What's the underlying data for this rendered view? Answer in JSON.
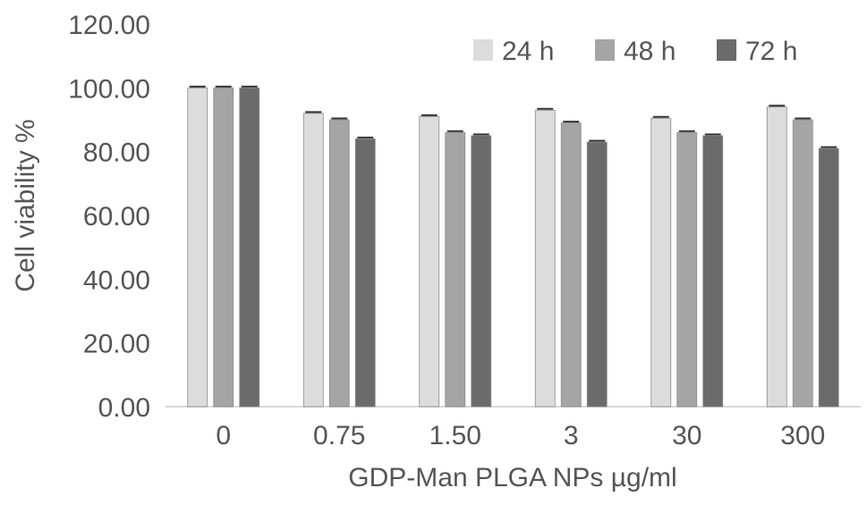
{
  "chart_data": {
    "type": "bar",
    "title": "",
    "xlabel": "GDP-Man PLGA NPs µg/ml",
    "ylabel": "Cell viability %",
    "ylim": [
      0,
      120
    ],
    "yticks": [
      "0.00",
      "20.00",
      "40.00",
      "60.00",
      "80.00",
      "100.00",
      "120.00"
    ],
    "categories": [
      "0",
      "0.75",
      "1.50",
      "3",
      "30",
      "300"
    ],
    "series": [
      {
        "name": "24 h",
        "color": "#dcdcdc",
        "values": [
          100,
          92,
          91,
          93,
          90.5,
          94
        ]
      },
      {
        "name": "48 h",
        "color": "#a5a5a5",
        "values": [
          100,
          90,
          86,
          89,
          86,
          90
        ]
      },
      {
        "name": "72 h",
        "color": "#6b6b6b",
        "values": [
          100,
          84,
          85,
          83,
          85,
          81
        ]
      }
    ],
    "legend_position": "top-right",
    "grid": false
  }
}
